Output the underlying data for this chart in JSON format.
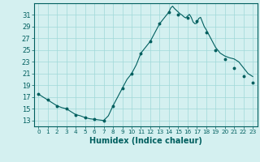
{
  "hours_raw": [
    0,
    0.5,
    1,
    1.5,
    2,
    2.5,
    3,
    3.5,
    4,
    4.5,
    5,
    5.5,
    6,
    6.5,
    7,
    7.5,
    8,
    8.5,
    9,
    9.5,
    10,
    10.5,
    11,
    11.5,
    12,
    12.5,
    13,
    13.5,
    14,
    14.2,
    14.4,
    14.6,
    14.8,
    15,
    15.2,
    15.4,
    15.6,
    15.8,
    16,
    16.2,
    16.4,
    16.6,
    16.8,
    17,
    17.2,
    17.4,
    17.6,
    17.8,
    18,
    18.5,
    19,
    19.5,
    20,
    20.5,
    21,
    21.5,
    22,
    22.5,
    23
  ],
  "y_raw": [
    17.5,
    17.0,
    16.5,
    16.0,
    15.5,
    15.2,
    15.0,
    14.5,
    14.0,
    13.8,
    13.5,
    13.3,
    13.2,
    13.1,
    13.0,
    13.8,
    15.5,
    17.0,
    18.5,
    20.0,
    21.0,
    22.5,
    24.5,
    25.5,
    26.5,
    28.0,
    29.5,
    30.5,
    31.5,
    32.2,
    32.5,
    32.1,
    31.8,
    31.5,
    31.2,
    31.0,
    30.7,
    30.5,
    30.8,
    31.1,
    30.6,
    29.8,
    29.5,
    29.6,
    30.4,
    30.6,
    29.8,
    29.0,
    28.5,
    27.0,
    25.5,
    24.5,
    24.0,
    23.7,
    23.5,
    23.0,
    22.0,
    21.0,
    20.5
  ],
  "int_hours": [
    0,
    1,
    2,
    3,
    4,
    5,
    6,
    7,
    8,
    9,
    10,
    11,
    12,
    13,
    14,
    15,
    16,
    17,
    18,
    19,
    20,
    21,
    22,
    23
  ],
  "int_y": [
    17.5,
    16.5,
    15.5,
    15.0,
    14.0,
    13.5,
    13.2,
    13.0,
    15.5,
    18.5,
    21.0,
    24.5,
    26.5,
    29.5,
    31.5,
    31.0,
    30.5,
    30.0,
    28.0,
    25.0,
    23.5,
    22.0,
    20.5,
    19.5
  ],
  "xlabel": "Humidex (Indice chaleur)",
  "xlim": [
    -0.5,
    23.5
  ],
  "ylim": [
    12,
    33
  ],
  "yticks": [
    13,
    15,
    17,
    19,
    21,
    23,
    25,
    27,
    29,
    31
  ],
  "xticks": [
    0,
    1,
    2,
    3,
    4,
    5,
    6,
    7,
    8,
    9,
    10,
    11,
    12,
    13,
    14,
    15,
    16,
    17,
    18,
    19,
    20,
    21,
    22,
    23
  ],
  "line_color": "#005f5f",
  "marker_color": "#005f5f",
  "bg_color": "#d4f0f0",
  "grid_color": "#a0d8d8"
}
